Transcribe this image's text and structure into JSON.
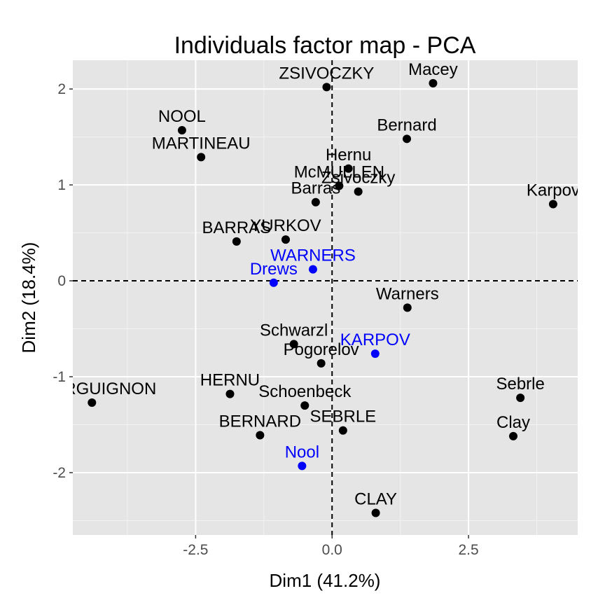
{
  "chart_data": {
    "type": "scatter",
    "title": "Individuals factor map - PCA",
    "xlabel": "Dim1 (41.2%)",
    "ylabel": "Dim2 (18.4%)",
    "xlim": [
      -4.75,
      4.5
    ],
    "ylim": [
      -2.65,
      2.3
    ],
    "xticks": [
      {
        "value": -2.5,
        "label": "-2.5"
      },
      {
        "value": 0,
        "label": "0.0"
      },
      {
        "value": 2.5,
        "label": "2.5"
      }
    ],
    "yticks": [
      {
        "value": -2,
        "label": "-2"
      },
      {
        "value": -1,
        "label": "-1"
      },
      {
        "value": 0,
        "label": "0"
      },
      {
        "value": 1,
        "label": "1"
      },
      {
        "value": 2,
        "label": "2"
      }
    ],
    "grid": true,
    "reference_lines": {
      "x": 0,
      "y": 0,
      "style": "dashed"
    },
    "colors": {
      "active": "#000000",
      "supplementary": "#0000ff",
      "panel": "#e5e5e5",
      "grid": "#ffffff"
    },
    "points": [
      {
        "label": "ZSIVOCZKY",
        "x": -0.1,
        "y": 2.02,
        "group": "active"
      },
      {
        "label": "Macey",
        "x": 1.85,
        "y": 2.06,
        "group": "active"
      },
      {
        "label": "NOOL",
        "x": -2.75,
        "y": 1.57,
        "group": "active"
      },
      {
        "label": "MARTINEAU",
        "x": -2.4,
        "y": 1.29,
        "group": "active"
      },
      {
        "label": "Bernard",
        "x": 1.37,
        "y": 1.48,
        "group": "active"
      },
      {
        "label": "Hernu",
        "x": 0.3,
        "y": 1.17,
        "group": "active"
      },
      {
        "label": "McMULLEN",
        "x": 0.13,
        "y": 0.99,
        "group": "active"
      },
      {
        "label": "Zsivoczky",
        "x": 0.48,
        "y": 0.93,
        "group": "active"
      },
      {
        "label": "Barras",
        "x": -0.3,
        "y": 0.82,
        "group": "active"
      },
      {
        "label": "Karpov",
        "x": 4.05,
        "y": 0.8,
        "group": "active"
      },
      {
        "label": "BARRAS",
        "x": -1.75,
        "y": 0.41,
        "group": "active"
      },
      {
        "label": "YURKOV",
        "x": -0.85,
        "y": 0.43,
        "group": "active"
      },
      {
        "label": "WARNERS",
        "x": -0.35,
        "y": 0.12,
        "group": "supplementary"
      },
      {
        "label": "Drews",
        "x": -1.07,
        "y": -0.02,
        "group": "supplementary"
      },
      {
        "label": "Warners",
        "x": 1.38,
        "y": -0.28,
        "group": "active"
      },
      {
        "label": "Schwarzl",
        "x": -0.7,
        "y": -0.66,
        "group": "active"
      },
      {
        "label": "KARPOV",
        "x": 0.79,
        "y": -0.76,
        "group": "supplementary"
      },
      {
        "label": "Pogorelov",
        "x": -0.2,
        "y": -0.86,
        "group": "active"
      },
      {
        "label": "BOURGUIGNON",
        "x": -4.4,
        "y": -1.27,
        "group": "active"
      },
      {
        "label": "HERNU",
        "x": -1.87,
        "y": -1.18,
        "group": "active"
      },
      {
        "label": "Schoenbeck",
        "x": -0.5,
        "y": -1.3,
        "group": "active"
      },
      {
        "label": "Sebrle",
        "x": 3.45,
        "y": -1.22,
        "group": "active"
      },
      {
        "label": "BERNARD",
        "x": -1.32,
        "y": -1.61,
        "group": "active"
      },
      {
        "label": "SEBRLE",
        "x": 0.2,
        "y": -1.56,
        "group": "active"
      },
      {
        "label": "Clay",
        "x": 3.32,
        "y": -1.62,
        "group": "active"
      },
      {
        "label": "Nool",
        "x": -0.55,
        "y": -1.93,
        "group": "supplementary"
      },
      {
        "label": "CLAY",
        "x": 0.8,
        "y": -2.42,
        "group": "active"
      }
    ]
  }
}
